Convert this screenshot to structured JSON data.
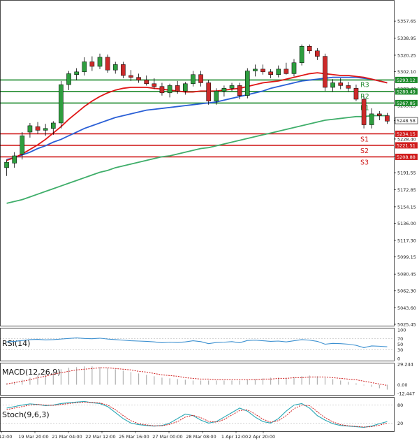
{
  "colors": {
    "bull": "#2e9e3f",
    "bear": "#cc2a2a",
    "resistance": "#1e8a2c",
    "support": "#d01c1c",
    "ma_fast": "#e01616",
    "ma_mid": "#2a5fd6",
    "ma_slow": "#3fae6a",
    "rsi_line": "#3a8fd0",
    "macd_signal": "#d02020",
    "macd_hist": "#aaaaaa",
    "stoch_main": "#27a7b5",
    "stoch_signal": "#d02020",
    "grid": "#e6e6e6"
  },
  "chart_data": [
    {
      "type": "candlestick",
      "ylim": [
        5025.45,
        5370.0
      ],
      "y_ticks": [
        "5357.65",
        "5338.95",
        "5320.25",
        "5302.10",
        "5283.40",
        "5265.25",
        "5248.58",
        "5228.40",
        "5209.70",
        "5191.55",
        "5172.85",
        "5154.15",
        "5136.00",
        "5117.30",
        "5099.15",
        "5080.45",
        "5062.30",
        "5043.60",
        "5025.45"
      ],
      "x_ticks": [
        "12:00",
        "19 Mar 20:00",
        "21 Mar 04:00",
        "22 Mar 12:00",
        "25 Mar 16:00",
        "27 Mar 00:00",
        "28 Mar 08:00",
        "1 Apr 12:00",
        "2 Apr 20:00"
      ],
      "levels": [
        {
          "label": "R3",
          "value": 5293.12,
          "tag": "5293.12",
          "kind": "resistance"
        },
        {
          "label": "R2",
          "value": 5280.49,
          "tag": "5280.49",
          "kind": "resistance"
        },
        {
          "label": "R1",
          "value": 5267.85,
          "tag": "5267.85",
          "kind": "resistance"
        },
        {
          "label": "S1",
          "value": 5234.15,
          "tag": "5234.15",
          "kind": "support"
        },
        {
          "label": "S2",
          "value": 5221.51,
          "tag": "5221.51",
          "kind": "support"
        },
        {
          "label": "S3",
          "value": 5208.88,
          "tag": "5208.88",
          "kind": "support"
        }
      ],
      "current_price": {
        "value": 5248.58,
        "tag": "5248.58"
      },
      "candles": [
        {
          "o": 5197,
          "h": 5206,
          "l": 5188,
          "c": 5203
        },
        {
          "o": 5202,
          "h": 5214,
          "l": 5197,
          "c": 5210
        },
        {
          "o": 5212,
          "h": 5236,
          "l": 5206,
          "c": 5232
        },
        {
          "o": 5236,
          "h": 5246,
          "l": 5230,
          "c": 5243
        },
        {
          "o": 5242,
          "h": 5247,
          "l": 5234,
          "c": 5238
        },
        {
          "o": 5238,
          "h": 5245,
          "l": 5232,
          "c": 5240
        },
        {
          "o": 5240,
          "h": 5248,
          "l": 5233,
          "c": 5246
        },
        {
          "o": 5246,
          "h": 5292,
          "l": 5240,
          "c": 5288
        },
        {
          "o": 5288,
          "h": 5303,
          "l": 5282,
          "c": 5300
        },
        {
          "o": 5299,
          "h": 5306,
          "l": 5293,
          "c": 5302
        },
        {
          "o": 5302,
          "h": 5318,
          "l": 5298,
          "c": 5313
        },
        {
          "o": 5313,
          "h": 5319,
          "l": 5303,
          "c": 5308
        },
        {
          "o": 5308,
          "h": 5322,
          "l": 5305,
          "c": 5318
        },
        {
          "o": 5318,
          "h": 5321,
          "l": 5301,
          "c": 5304
        },
        {
          "o": 5304,
          "h": 5313,
          "l": 5300,
          "c": 5310
        },
        {
          "o": 5310,
          "h": 5313,
          "l": 5295,
          "c": 5298
        },
        {
          "o": 5298,
          "h": 5304,
          "l": 5292,
          "c": 5296
        },
        {
          "o": 5296,
          "h": 5300,
          "l": 5290,
          "c": 5293
        },
        {
          "o": 5293,
          "h": 5298,
          "l": 5287,
          "c": 5289
        },
        {
          "o": 5289,
          "h": 5295,
          "l": 5283,
          "c": 5286
        },
        {
          "o": 5286,
          "h": 5290,
          "l": 5276,
          "c": 5279
        },
        {
          "o": 5279,
          "h": 5289,
          "l": 5274,
          "c": 5287
        },
        {
          "o": 5287,
          "h": 5292,
          "l": 5278,
          "c": 5281
        },
        {
          "o": 5281,
          "h": 5291,
          "l": 5277,
          "c": 5289
        },
        {
          "o": 5289,
          "h": 5303,
          "l": 5286,
          "c": 5299
        },
        {
          "o": 5299,
          "h": 5303,
          "l": 5286,
          "c": 5290
        },
        {
          "o": 5290,
          "h": 5293,
          "l": 5266,
          "c": 5270
        },
        {
          "o": 5270,
          "h": 5284,
          "l": 5266,
          "c": 5281
        },
        {
          "o": 5281,
          "h": 5287,
          "l": 5275,
          "c": 5284
        },
        {
          "o": 5284,
          "h": 5290,
          "l": 5281,
          "c": 5287
        },
        {
          "o": 5287,
          "h": 5290,
          "l": 5272,
          "c": 5276
        },
        {
          "o": 5276,
          "h": 5306,
          "l": 5273,
          "c": 5303
        },
        {
          "o": 5303,
          "h": 5310,
          "l": 5297,
          "c": 5305
        },
        {
          "o": 5305,
          "h": 5310,
          "l": 5299,
          "c": 5302
        },
        {
          "o": 5302,
          "h": 5305,
          "l": 5295,
          "c": 5299
        },
        {
          "o": 5299,
          "h": 5309,
          "l": 5296,
          "c": 5305
        },
        {
          "o": 5305,
          "h": 5312,
          "l": 5299,
          "c": 5300
        },
        {
          "o": 5300,
          "h": 5316,
          "l": 5297,
          "c": 5312
        },
        {
          "o": 5312,
          "h": 5332,
          "l": 5309,
          "c": 5330
        },
        {
          "o": 5330,
          "h": 5332,
          "l": 5322,
          "c": 5325
        },
        {
          "o": 5325,
          "h": 5328,
          "l": 5315,
          "c": 5319
        },
        {
          "o": 5319,
          "h": 5322,
          "l": 5281,
          "c": 5285
        },
        {
          "o": 5285,
          "h": 5294,
          "l": 5280,
          "c": 5290
        },
        {
          "o": 5290,
          "h": 5295,
          "l": 5283,
          "c": 5287
        },
        {
          "o": 5287,
          "h": 5291,
          "l": 5280,
          "c": 5284
        },
        {
          "o": 5284,
          "h": 5288,
          "l": 5270,
          "c": 5272
        },
        {
          "o": 5272,
          "h": 5275,
          "l": 5240,
          "c": 5244
        },
        {
          "o": 5244,
          "h": 5262,
          "l": 5240,
          "c": 5256
        },
        {
          "o": 5256,
          "h": 5259,
          "l": 5249,
          "c": 5254
        },
        {
          "o": 5254,
          "h": 5257,
          "l": 5245,
          "c": 5248
        }
      ],
      "ma_fast": [
        5205,
        5208,
        5212,
        5217,
        5222,
        5228,
        5235,
        5242,
        5250,
        5257,
        5264,
        5270,
        5275,
        5279,
        5282,
        5284,
        5285,
        5285,
        5285,
        5284,
        5283,
        5282,
        5281,
        5280,
        5280,
        5281,
        5281,
        5281,
        5282,
        5283,
        5284,
        5286,
        5288,
        5290,
        5291,
        5292,
        5294,
        5296,
        5298,
        5300,
        5301,
        5300,
        5299,
        5298,
        5298,
        5297,
        5296,
        5294,
        5292,
        5290
      ],
      "ma_mid": [
        5206,
        5208,
        5211,
        5214,
        5218,
        5221,
        5225,
        5228,
        5232,
        5236,
        5240,
        5243,
        5246,
        5249,
        5252,
        5254,
        5256,
        5258,
        5260,
        5261,
        5262,
        5263,
        5264,
        5265,
        5266,
        5267,
        5268,
        5269,
        5271,
        5273,
        5275,
        5277,
        5279,
        5281,
        5284,
        5286,
        5288,
        5290,
        5292,
        5293,
        5294,
        5295,
        5296,
        5296,
        5296,
        5296,
        5295,
        5294,
        5292,
        5290
      ],
      "ma_slow": [
        5158,
        5160,
        5162,
        5165,
        5168,
        5171,
        5174,
        5177,
        5180,
        5183,
        5186,
        5189,
        5192,
        5194,
        5197,
        5199,
        5201,
        5203,
        5205,
        5207,
        5209,
        5210,
        5212,
        5214,
        5216,
        5218,
        5219,
        5221,
        5223,
        5225,
        5227,
        5229,
        5231,
        5233,
        5235,
        5237,
        5239,
        5241,
        5243,
        5245,
        5247,
        5249,
        5250,
        5251,
        5252,
        5253,
        5253,
        5254,
        5254,
        5254
      ]
    },
    {
      "type": "line",
      "title": "RSI(14)",
      "ylim": [
        0,
        100
      ],
      "y_ticks": [
        "100",
        "70",
        "50",
        "30",
        "0"
      ],
      "values": [
        58,
        60,
        63,
        66,
        67,
        65,
        66,
        68,
        70,
        72,
        70,
        69,
        71,
        68,
        66,
        64,
        62,
        61,
        60,
        58,
        55,
        57,
        56,
        58,
        62,
        59,
        52,
        56,
        57,
        59,
        55,
        63,
        64,
        62,
        60,
        61,
        58,
        62,
        66,
        64,
        60,
        50,
        53,
        52,
        50,
        46,
        38,
        44,
        43,
        41
      ]
    },
    {
      "type": "bar",
      "title": "MACD(12,26,9)",
      "ylim": [
        -12.447,
        29.244
      ],
      "y_ticks": [
        "29.244",
        "0.00",
        "-12.447"
      ],
      "values": [
        2,
        4,
        7,
        10,
        13,
        16,
        19,
        22,
        24,
        25,
        26,
        26,
        25,
        24,
        22,
        20,
        18,
        16,
        14,
        12,
        10,
        9,
        8,
        7,
        6,
        6,
        6,
        6,
        6,
        6,
        6,
        7,
        8,
        9,
        10,
        10,
        10,
        11,
        12,
        13,
        12,
        10,
        8,
        6,
        4,
        2,
        -1,
        -3,
        -5,
        -7
      ],
      "signal": [
        1,
        3,
        5,
        7,
        10,
        12,
        15,
        17,
        19,
        21,
        22,
        23,
        24,
        24,
        23,
        22,
        21,
        19,
        18,
        16,
        14,
        13,
        12,
        10,
        9,
        8,
        8,
        7,
        7,
        7,
        7,
        7,
        7,
        8,
        8,
        9,
        9,
        10,
        10,
        11,
        11,
        11,
        10,
        9,
        8,
        7,
        5,
        3,
        1,
        -1
      ]
    },
    {
      "type": "line",
      "title": "Stoch(9,6,3)",
      "ylim": [
        0,
        100
      ],
      "y_ticks": [
        "80",
        "20"
      ],
      "main": [
        70,
        75,
        80,
        84,
        82,
        78,
        80,
        85,
        88,
        90,
        92,
        88,
        85,
        75,
        55,
        35,
        20,
        15,
        12,
        10,
        12,
        20,
        35,
        50,
        45,
        30,
        20,
        25,
        40,
        55,
        70,
        60,
        40,
        25,
        20,
        35,
        60,
        80,
        85,
        70,
        45,
        30,
        18,
        12,
        10,
        8,
        6,
        10,
        18,
        25
      ],
      "signal": [
        65,
        70,
        75,
        80,
        82,
        80,
        79,
        82,
        85,
        88,
        90,
        89,
        87,
        80,
        65,
        45,
        28,
        18,
        14,
        11,
        11,
        16,
        25,
        40,
        46,
        38,
        26,
        23,
        32,
        47,
        62,
        64,
        50,
        33,
        23,
        28,
        45,
        68,
        80,
        78,
        58,
        38,
        24,
        15,
        11,
        9,
        7,
        8,
        13,
        20
      ]
    }
  ]
}
